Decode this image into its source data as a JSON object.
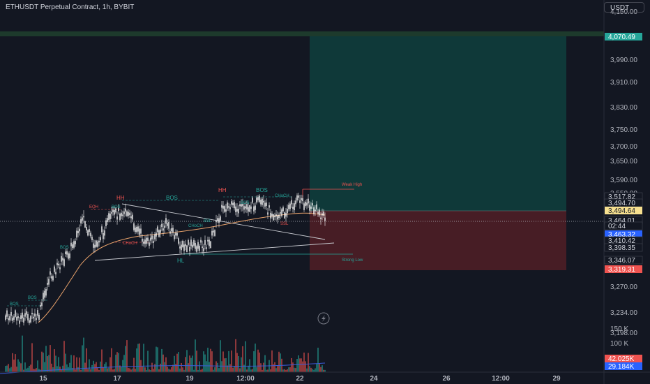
{
  "header": {
    "title": "ETHUSDT Perpetual Contract, 1h, BYBIT",
    "currency": "USDT"
  },
  "colors": {
    "bg": "#131722",
    "up": "#ffffff",
    "down": "#ffffff",
    "target_zone": "#0f3b3b",
    "stop_zone": "#4a1e26",
    "ema": "#e8a26b",
    "teal": "#26a69a",
    "red": "#ef5350"
  },
  "price_axis": {
    "ticks": [
      "4,150.00",
      "3,990.00",
      "3,910.00",
      "3,830.00",
      "3,750.00",
      "3,700.00",
      "3,650.00",
      "3,590.00",
      "3,550.00",
      "3,270.00",
      "3,234.00",
      "3,198.00"
    ],
    "labels": [
      {
        "text": "4,070.49",
        "style": "teal"
      },
      {
        "text": "3,517.82",
        "style": "outline"
      },
      {
        "text": "3,494.70",
        "style": "outline"
      },
      {
        "text": "3,494.64",
        "style": "yellow"
      },
      {
        "text": "3,464.01",
        "style": "outline"
      },
      {
        "text": "02:44",
        "style": "outline"
      },
      {
        "text": "3,463.32",
        "style": "blue"
      },
      {
        "text": "3,410.42",
        "style": "outline"
      },
      {
        "text": "3,398.35",
        "style": "outline"
      },
      {
        "text": "3,346.07",
        "style": "outline"
      },
      {
        "text": "3,319.31",
        "style": "red"
      }
    ]
  },
  "volume_axis": {
    "ticks": [
      "150 K",
      "100 K"
    ],
    "labels": [
      {
        "text": "42.025K",
        "style": "red"
      },
      {
        "text": "29.184K",
        "style": "blue"
      }
    ]
  },
  "time_axis": {
    "ticks": [
      "15",
      "17",
      "19",
      "12:00",
      "22",
      "24",
      "26",
      "12:00",
      "29"
    ]
  },
  "annotations": {
    "hh": "HH",
    "bos": "BOS",
    "eqh": "EQH",
    "choch": "CHoCH",
    "hl": "HL",
    "weak_high": "Weak High",
    "strong_low": "Strong Low",
    "bsl": "BSL",
    "ssl": "SSL"
  }
}
